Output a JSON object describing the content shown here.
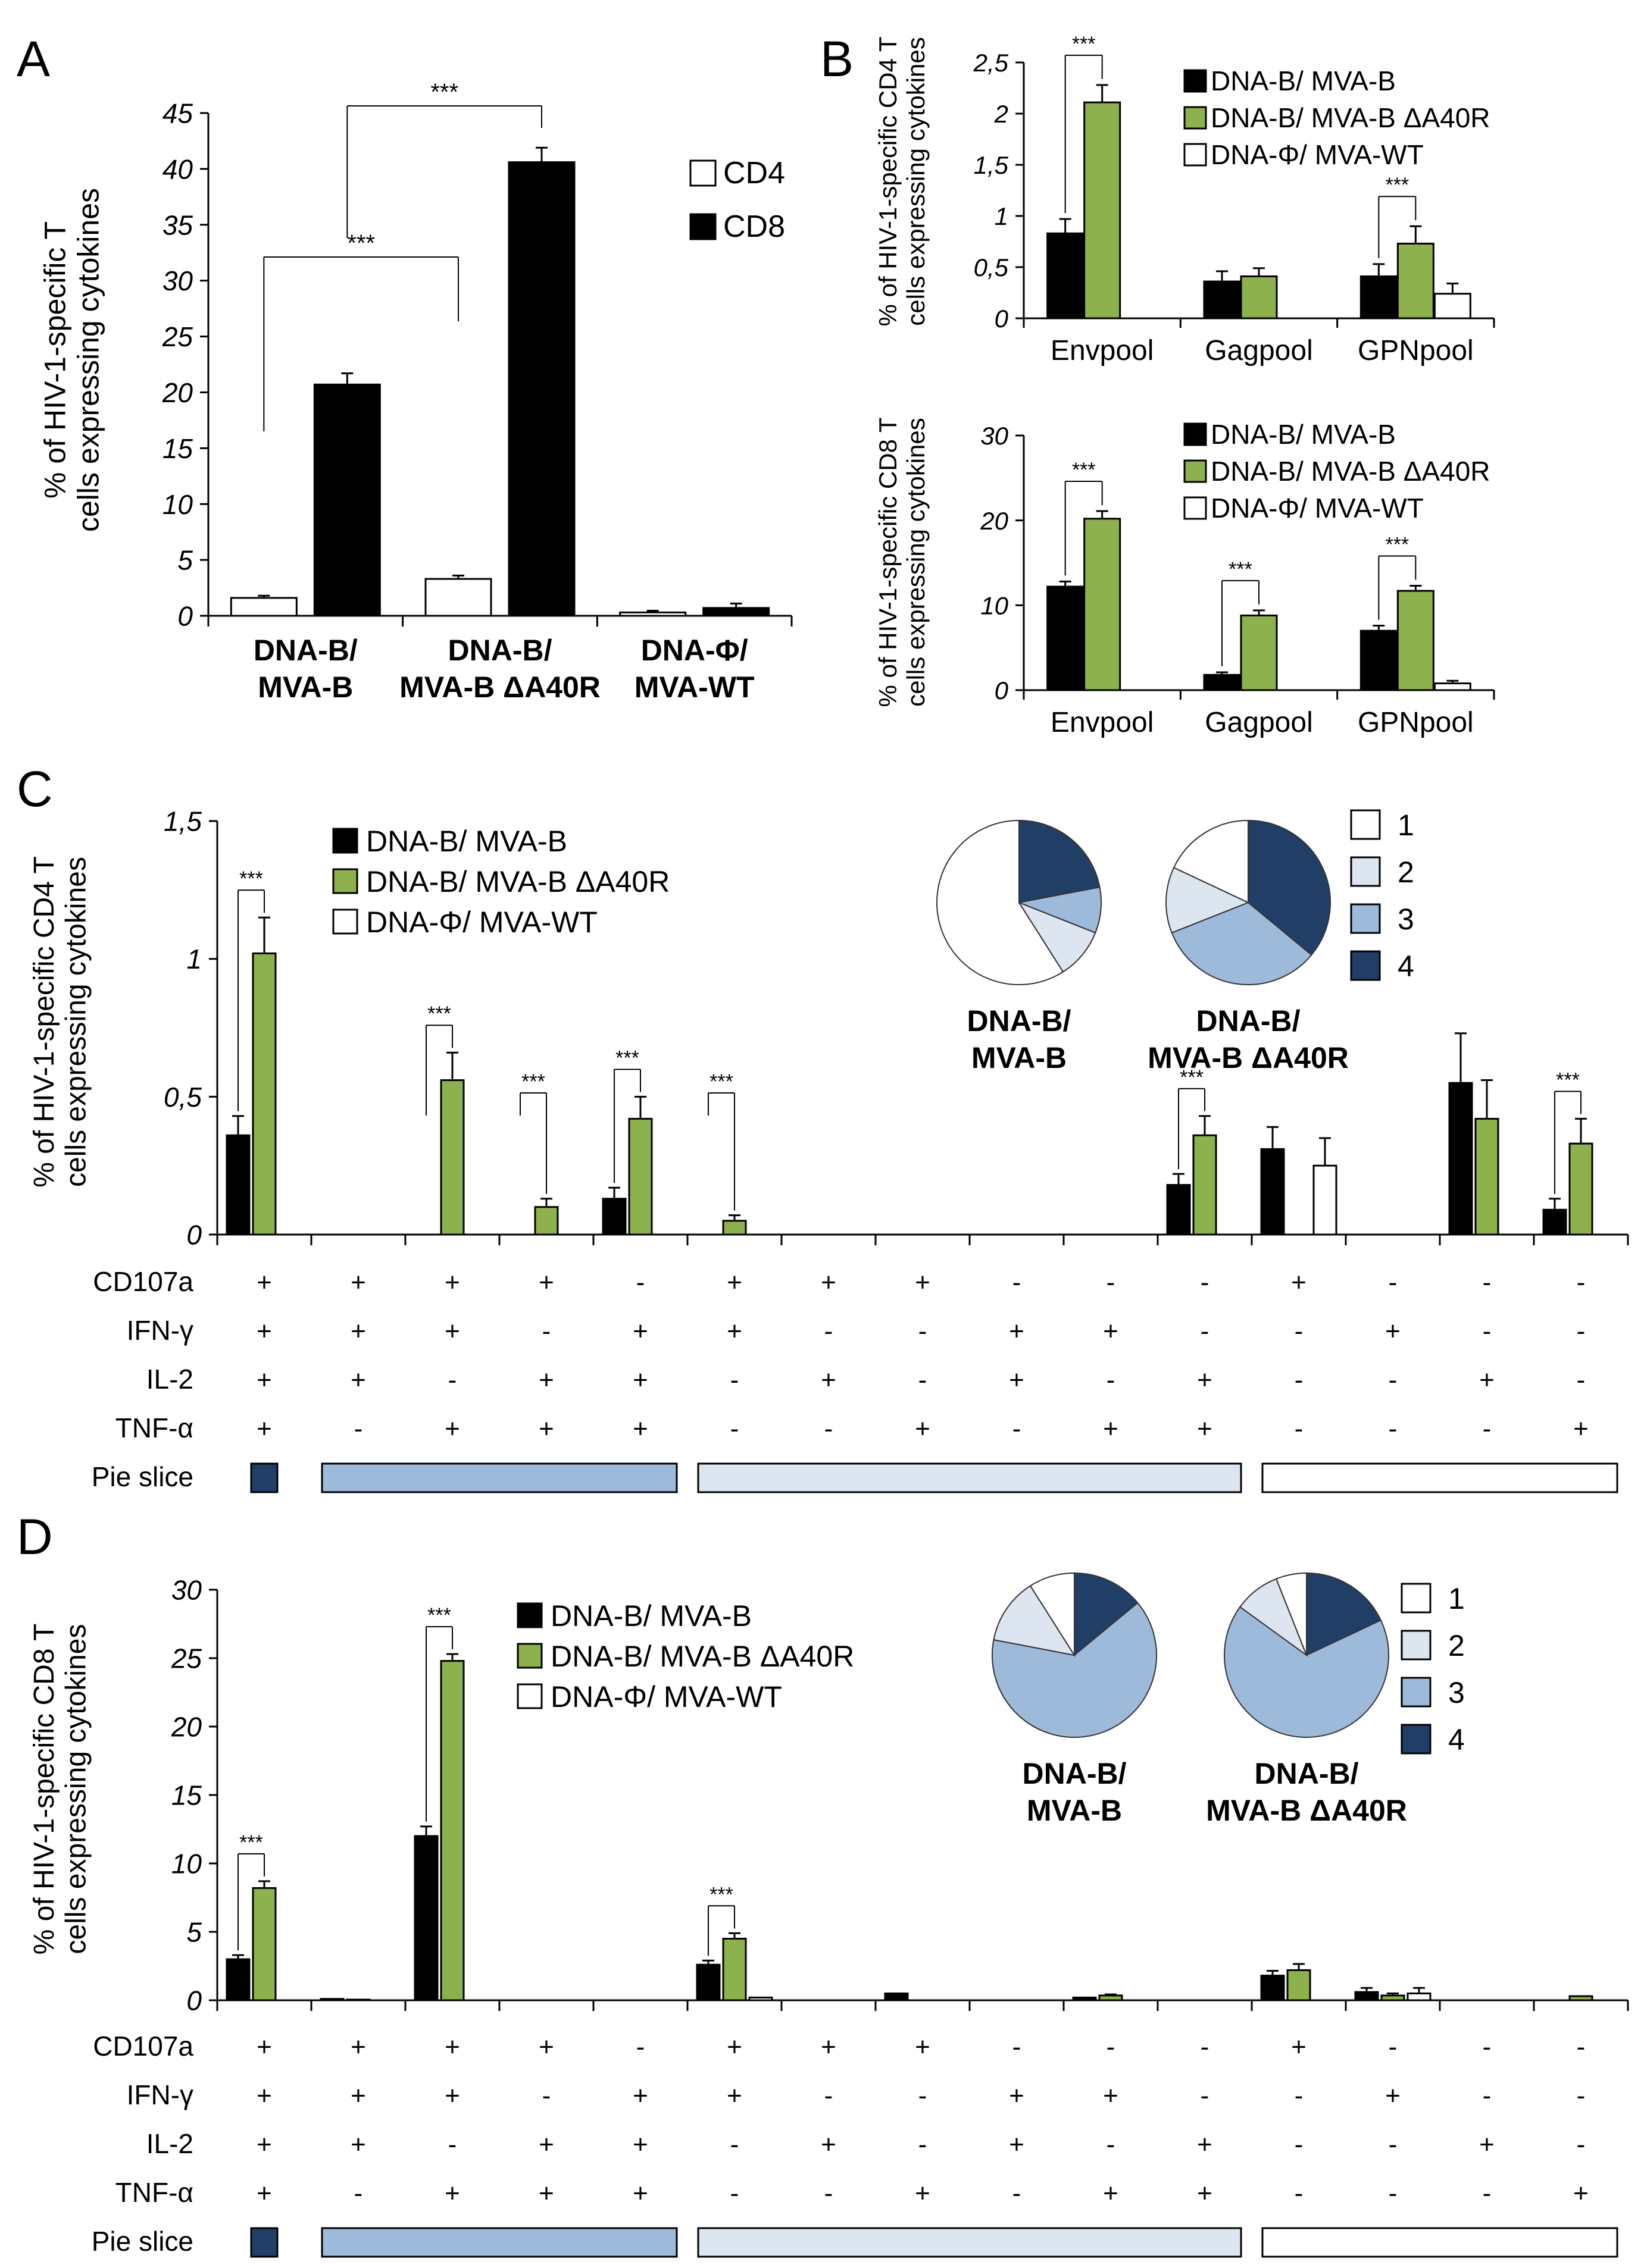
{
  "figure": {
    "panel_labels": [
      "A",
      "B",
      "C",
      "D"
    ],
    "sig_label": "***",
    "colors": {
      "black": "#000000",
      "green": "#8db14c",
      "white": "#ffffff",
      "p1": "#ffffff",
      "p2": "#dde6f0",
      "p3": "#9ebadb",
      "p4": "#213f66"
    }
  },
  "chart_data": [
    {
      "id": "A",
      "type": "bar",
      "ylabel": [
        "% of HIV-1-specific T",
        "cells expressing cytokines"
      ],
      "ylim": [
        0,
        45
      ],
      "yticks": [
        "0",
        "5",
        "10",
        "15",
        "20",
        "25",
        "30",
        "35",
        "40",
        "45"
      ],
      "categories": [
        [
          "DNA-B/",
          "MVA-B"
        ],
        [
          "DNA-B/",
          "MVA-B ΔA40R"
        ],
        [
          "DNA-Φ/",
          "MVA-WT"
        ]
      ],
      "series": [
        {
          "name": "CD4",
          "color": "white",
          "values": [
            1.6,
            3.3,
            0.3
          ],
          "errors": [
            0.2,
            0.3,
            0.15
          ]
        },
        {
          "name": "CD8",
          "color": "black",
          "values": [
            20.7,
            40.6,
            0.7
          ],
          "errors": [
            1.0,
            1.3,
            0.4
          ]
        }
      ],
      "legend": [
        "CD4",
        "CD8"
      ],
      "significance": [
        {
          "from": [
            0,
            0
          ],
          "to": [
            1,
            0
          ],
          "label": "***"
        },
        {
          "from": [
            0,
            1
          ],
          "to": [
            1,
            1
          ],
          "label": "***"
        }
      ]
    },
    {
      "id": "B-CD4",
      "type": "bar",
      "ylabel": [
        "% of HIV-1-specific CD4 T",
        "cells expressing cytokines"
      ],
      "ylim": [
        0,
        2.5
      ],
      "yticks": [
        "0",
        "0,5",
        "1",
        "1,5",
        "2",
        "2,5"
      ],
      "categories": [
        "Envpool",
        "Gagpool",
        "GPNpool"
      ],
      "series": [
        {
          "name": "DNA-B/ MVA-B",
          "color": "black",
          "values": [
            0.83,
            0.36,
            0.41
          ],
          "errors": [
            0.14,
            0.1,
            0.12
          ]
        },
        {
          "name": "DNA-B/ MVA-B ΔA40R",
          "color": "green",
          "values": [
            2.11,
            0.41,
            0.73
          ],
          "errors": [
            0.17,
            0.08,
            0.17
          ]
        },
        {
          "name": "DNA-Φ/ MVA-WT",
          "color": "white",
          "values": [
            0,
            0,
            0.24
          ],
          "errors": [
            0,
            0,
            0.1
          ]
        }
      ],
      "significance": [
        {
          "category": 0,
          "label": "***"
        },
        {
          "category": 2,
          "label": "***"
        }
      ]
    },
    {
      "id": "B-CD8",
      "type": "bar",
      "ylabel": [
        "% of HIV-1-specific CD8 T",
        "cells expressing cytokines"
      ],
      "ylim": [
        0,
        30
      ],
      "yticks": [
        "0",
        "10",
        "20",
        "30"
      ],
      "categories": [
        "Envpool",
        "Gagpool",
        "GPNpool"
      ],
      "series": [
        {
          "name": "DNA-B/ MVA-B",
          "color": "black",
          "values": [
            12.2,
            1.8,
            7.0
          ],
          "errors": [
            0.6,
            0.3,
            0.6
          ]
        },
        {
          "name": "DNA-B/ MVA-B ΔA40R",
          "color": "green",
          "values": [
            20.2,
            8.8,
            11.7
          ],
          "errors": [
            0.9,
            0.6,
            0.6
          ]
        },
        {
          "name": "DNA-Φ/ MVA-WT",
          "color": "white",
          "values": [
            0,
            0,
            0.8
          ],
          "errors": [
            0,
            0,
            0.3
          ]
        }
      ],
      "significance": [
        {
          "category": 0,
          "label": "***"
        },
        {
          "category": 1,
          "label": "***"
        },
        {
          "category": 2,
          "label": "***"
        }
      ]
    },
    {
      "id": "C",
      "type": "bar",
      "ylabel": [
        "% of HIV-1-specific CD4 T",
        "cells expressing cytokines"
      ],
      "ylim": [
        0,
        1.5
      ],
      "yticks": [
        "0",
        "0,5",
        "1",
        "1,5"
      ],
      "series_names": [
        "DNA-B/ MVA-B",
        "DNA-B/ MVA-B ΔA40R",
        "DNA-Φ/ MVA-WT"
      ],
      "values": [
        [
          0.36,
          1.02,
          0
        ],
        [
          0,
          0,
          0
        ],
        [
          0,
          0.56,
          0
        ],
        [
          0,
          0.1,
          0
        ],
        [
          0.13,
          0.42,
          0
        ],
        [
          0,
          0.05,
          0
        ],
        [
          0,
          0,
          0
        ],
        [
          0,
          0,
          0
        ],
        [
          0,
          0,
          0
        ],
        [
          0,
          0,
          0
        ],
        [
          0.18,
          0.36,
          0
        ],
        [
          0.31,
          0,
          0.25
        ],
        [
          0,
          0,
          0
        ],
        [
          0.55,
          0.42,
          0
        ],
        [
          0.09,
          0.33,
          0
        ]
      ],
      "errors": [
        [
          0.07,
          0.13,
          0
        ],
        [
          0,
          0,
          0
        ],
        [
          0,
          0.1,
          0
        ],
        [
          0,
          0.03,
          0
        ],
        [
          0.04,
          0.08,
          0
        ],
        [
          0,
          0.02,
          0
        ],
        [
          0,
          0,
          0
        ],
        [
          0,
          0,
          0
        ],
        [
          0,
          0,
          0
        ],
        [
          0,
          0,
          0
        ],
        [
          0.04,
          0.07,
          0
        ],
        [
          0.08,
          0,
          0.1
        ],
        [
          0,
          0,
          0
        ],
        [
          0.18,
          0.14,
          0
        ],
        [
          0.04,
          0.09,
          0
        ]
      ],
      "significance_groups": [
        0,
        2,
        3,
        4,
        5,
        10,
        14
      ],
      "pies": [
        {
          "label": [
            "DNA-B/",
            "MVA-B"
          ],
          "fractions": [
            0.59,
            0.1,
            0.09,
            0.22
          ]
        },
        {
          "label": [
            "DNA-B/",
            "MVA-B ΔA40R"
          ],
          "fractions": [
            0.18,
            0.13,
            0.33,
            0.36
          ]
        }
      ],
      "pie_legend": [
        "1",
        "2",
        "3",
        "4"
      ]
    },
    {
      "id": "D",
      "type": "bar",
      "ylabel": [
        "% of HIV-1-specific CD8 T",
        "cells expressing cytokines"
      ],
      "ylim": [
        0,
        30
      ],
      "yticks": [
        "0",
        "5",
        "10",
        "15",
        "20",
        "25",
        "30"
      ],
      "series_names": [
        "DNA-B/ MVA-B",
        "DNA-B/ MVA-B ΔA40R",
        "DNA-Φ/ MVA-WT"
      ],
      "values": [
        [
          3.0,
          8.2,
          0
        ],
        [
          0.1,
          0.05,
          0
        ],
        [
          12.0,
          24.8,
          0
        ],
        [
          0,
          0,
          0
        ],
        [
          0,
          0,
          0
        ],
        [
          2.6,
          4.5,
          0.2
        ],
        [
          0,
          0,
          0
        ],
        [
          0.5,
          0,
          0
        ],
        [
          0,
          0,
          0
        ],
        [
          0.2,
          0.35,
          0
        ],
        [
          0,
          0,
          0
        ],
        [
          1.8,
          2.2,
          0
        ],
        [
          0.6,
          0.35,
          0.5
        ],
        [
          0,
          0,
          0
        ],
        [
          0,
          0.3,
          0
        ]
      ],
      "errors": [
        [
          0.3,
          0.5,
          0
        ],
        [
          0,
          0,
          0
        ],
        [
          0.7,
          0.5,
          0
        ],
        [
          0,
          0,
          0
        ],
        [
          0,
          0,
          0
        ],
        [
          0.3,
          0.4,
          0
        ],
        [
          0,
          0,
          0
        ],
        [
          0,
          0,
          0
        ],
        [
          0,
          0,
          0
        ],
        [
          0,
          0.08,
          0
        ],
        [
          0,
          0,
          0
        ],
        [
          0.35,
          0.45,
          0
        ],
        [
          0.3,
          0.15,
          0.4
        ],
        [
          0,
          0,
          0
        ],
        [
          0,
          0,
          0
        ]
      ],
      "significance_groups": [
        0,
        2,
        5
      ],
      "pies": [
        {
          "label": [
            "DNA-B/",
            "MVA-B"
          ],
          "fractions": [
            0.09,
            0.13,
            0.64,
            0.14
          ]
        },
        {
          "label": [
            "DNA-B/",
            "MVA-B ΔA40R"
          ],
          "fractions": [
            0.06,
            0.09,
            0.67,
            0.18
          ]
        }
      ],
      "pie_legend": [
        "1",
        "2",
        "3",
        "4"
      ]
    }
  ],
  "cytokine_table": {
    "rows": [
      {
        "name": "CD107a",
        "signs": [
          "+",
          "+",
          "+",
          "+",
          "-",
          "+",
          "+",
          "+",
          "-",
          "-",
          "-",
          "+",
          "-",
          "-",
          "-"
        ]
      },
      {
        "name": "IFN-γ",
        "signs": [
          "+",
          "+",
          "+",
          "-",
          "+",
          "+",
          "-",
          "-",
          "+",
          "+",
          "-",
          "-",
          "+",
          "-",
          "-"
        ]
      },
      {
        "name": "IL-2",
        "signs": [
          "+",
          "+",
          "-",
          "+",
          "+",
          "-",
          "+",
          "-",
          "+",
          "-",
          "+",
          "-",
          "-",
          "+",
          "-"
        ]
      },
      {
        "name": "TNF-α",
        "signs": [
          "+",
          "-",
          "+",
          "+",
          "+",
          "-",
          "-",
          "+",
          "-",
          "+",
          "+",
          "-",
          "-",
          "-",
          "+"
        ]
      }
    ],
    "pie_slice_label": "Pie slice",
    "pie_slice_groups": [
      {
        "slice": 4,
        "start": 0,
        "end": 0
      },
      {
        "slice": 3,
        "start": 1,
        "end": 4
      },
      {
        "slice": 2,
        "start": 5,
        "end": 10
      },
      {
        "slice": 1,
        "start": 11,
        "end": 14
      }
    ]
  }
}
